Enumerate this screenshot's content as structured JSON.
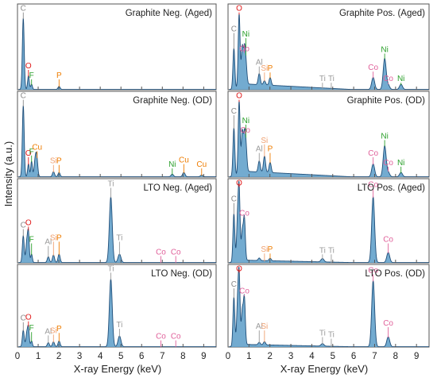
{
  "figure": {
    "xlabel": "X-ray Energy (keV)",
    "ylabel": "Intensity (a.u.)",
    "x_ticks": [
      "0",
      "1",
      "2",
      "3",
      "4",
      "5",
      "6",
      "7",
      "8",
      "9"
    ]
  },
  "element_colors": {
    "C": "#8a8a8a",
    "O": "#e01818",
    "F": "#2ca02c",
    "P": "#ee7c00",
    "Cu": "#ee7c00",
    "Si": "#f0a070",
    "Al": "#9a9a9a",
    "Ti": "#9a9a9a",
    "Ni": "#2ca02c",
    "Co": "#e0609a"
  },
  "style": {
    "fill": "#5b9cc8",
    "line": "#1f4e79"
  },
  "chart_data": [
    {
      "type": "area",
      "title": "Graphite Neg. (Aged)",
      "xlim": [
        0,
        9.6
      ],
      "peaks": [
        {
          "x": 0.28,
          "h": 0.83,
          "w": 0.045
        },
        {
          "x": 0.53,
          "h": 0.16,
          "w": 0.04
        },
        {
          "x": 0.68,
          "h": 0.06,
          "w": 0.04
        },
        {
          "x": 2.01,
          "h": 0.035,
          "w": 0.05
        }
      ],
      "labels": [
        {
          "el": "C",
          "x": 0.28,
          "y": 0.92
        },
        {
          "el": "O",
          "x": 0.53,
          "y": 0.25
        },
        {
          "el": "F",
          "x": 0.68,
          "y": 0.14
        },
        {
          "el": "P",
          "x": 2.01,
          "y": 0.14
        }
      ]
    },
    {
      "type": "area",
      "title": "Graphite Pos. (Aged)",
      "xlim": [
        0,
        9.6
      ],
      "peaks": [
        {
          "x": 0.28,
          "h": 0.48,
          "w": 0.045
        },
        {
          "x": 0.53,
          "h": 0.84,
          "w": 0.045
        },
        {
          "x": 0.68,
          "h": 0.42,
          "w": 0.045
        },
        {
          "x": 0.78,
          "h": 0.34,
          "w": 0.045
        },
        {
          "x": 0.85,
          "h": 0.24,
          "w": 0.05
        },
        {
          "x": 1.49,
          "h": 0.13,
          "w": 0.05
        },
        {
          "x": 1.74,
          "h": 0.05,
          "w": 0.05
        },
        {
          "x": 2.01,
          "h": 0.09,
          "w": 0.05
        },
        {
          "x": 6.93,
          "h": 0.14,
          "w": 0.07
        },
        {
          "x": 7.48,
          "h": 0.36,
          "w": 0.07
        },
        {
          "x": 7.65,
          "h": 0.05,
          "w": 0.07
        },
        {
          "x": 8.26,
          "h": 0.06,
          "w": 0.07
        }
      ],
      "background": 0.07,
      "labels": [
        {
          "el": "C",
          "x": 0.28,
          "y": 0.68
        },
        {
          "el": "O",
          "x": 0.53,
          "y": 0.92
        },
        {
          "el": "Ni",
          "x": 0.85,
          "y": 0.62
        },
        {
          "el": "Co",
          "x": 0.78,
          "y": 0.45
        },
        {
          "el": "Al",
          "x": 1.49,
          "y": 0.29
        },
        {
          "el": "Si",
          "x": 1.74,
          "y": 0.22
        },
        {
          "el": "P",
          "x": 2.01,
          "y": 0.22
        },
        {
          "el": "Ti",
          "x": 4.51,
          "y": 0.1
        },
        {
          "el": "Ti",
          "x": 4.93,
          "y": 0.1
        },
        {
          "el": "Co",
          "x": 6.93,
          "y": 0.23
        },
        {
          "el": "Ni",
          "x": 7.48,
          "y": 0.44
        },
        {
          "el": "Co",
          "x": 7.65,
          "y": 0.1
        },
        {
          "el": "Ni",
          "x": 8.26,
          "y": 0.1
        }
      ]
    },
    {
      "type": "area",
      "title": "Graphite Neg. (OD)",
      "xlim": [
        0,
        9.6
      ],
      "peaks": [
        {
          "x": 0.28,
          "h": 0.83,
          "w": 0.045
        },
        {
          "x": 0.53,
          "h": 0.15,
          "w": 0.04
        },
        {
          "x": 0.68,
          "h": 0.18,
          "w": 0.04
        },
        {
          "x": 0.85,
          "h": 0.17,
          "w": 0.05
        },
        {
          "x": 0.93,
          "h": 0.22,
          "w": 0.05
        },
        {
          "x": 1.74,
          "h": 0.06,
          "w": 0.05
        },
        {
          "x": 2.01,
          "h": 0.05,
          "w": 0.05
        },
        {
          "x": 7.48,
          "h": 0.03,
          "w": 0.06
        },
        {
          "x": 8.04,
          "h": 0.05,
          "w": 0.06
        },
        {
          "x": 8.9,
          "h": 0.02,
          "w": 0.06
        }
      ],
      "labels": [
        {
          "el": "C",
          "x": 0.28,
          "y": 0.92
        },
        {
          "el": "O",
          "x": 0.53,
          "y": 0.25
        },
        {
          "el": "F",
          "x": 0.68,
          "y": 0.27
        },
        {
          "el": "Cu",
          "x": 0.95,
          "y": 0.32
        },
        {
          "el": "Si",
          "x": 1.74,
          "y": 0.16
        },
        {
          "el": "P",
          "x": 2.01,
          "y": 0.16
        },
        {
          "el": "Ni",
          "x": 7.48,
          "y": 0.12
        },
        {
          "el": "Cu",
          "x": 8.04,
          "y": 0.17
        },
        {
          "el": "Cu",
          "x": 8.9,
          "y": 0.12
        }
      ]
    },
    {
      "type": "area",
      "title": "Graphite Pos. (OD)",
      "xlim": [
        0,
        9.6
      ],
      "peaks": [
        {
          "x": 0.28,
          "h": 0.57,
          "w": 0.045
        },
        {
          "x": 0.53,
          "h": 0.84,
          "w": 0.045
        },
        {
          "x": 0.68,
          "h": 0.45,
          "w": 0.045
        },
        {
          "x": 0.78,
          "h": 0.34,
          "w": 0.045
        },
        {
          "x": 0.85,
          "h": 0.3,
          "w": 0.05
        },
        {
          "x": 1.49,
          "h": 0.13,
          "w": 0.05
        },
        {
          "x": 1.74,
          "h": 0.19,
          "w": 0.05
        },
        {
          "x": 2.01,
          "h": 0.12,
          "w": 0.05
        },
        {
          "x": 6.93,
          "h": 0.15,
          "w": 0.07
        },
        {
          "x": 7.48,
          "h": 0.36,
          "w": 0.07
        },
        {
          "x": 7.65,
          "h": 0.05,
          "w": 0.07
        },
        {
          "x": 8.26,
          "h": 0.05,
          "w": 0.07
        }
      ],
      "background": 0.07,
      "labels": [
        {
          "el": "C",
          "x": 0.28,
          "y": 0.74
        },
        {
          "el": "O",
          "x": 0.53,
          "y": 0.92
        },
        {
          "el": "Ni",
          "x": 0.85,
          "y": 0.63
        },
        {
          "el": "Co",
          "x": 0.82,
          "y": 0.52
        },
        {
          "el": "Al",
          "x": 1.49,
          "y": 0.3
        },
        {
          "el": "Si",
          "x": 1.74,
          "y": 0.4
        },
        {
          "el": "P",
          "x": 2.01,
          "y": 0.3
        },
        {
          "el": "Co",
          "x": 6.93,
          "y": 0.25
        },
        {
          "el": "Ni",
          "x": 7.48,
          "y": 0.45
        },
        {
          "el": "Co",
          "x": 7.65,
          "y": 0.14
        },
        {
          "el": "Ni",
          "x": 8.26,
          "y": 0.14
        }
      ]
    },
    {
      "type": "area",
      "title": "LTO Neg. (Aged)",
      "xlim": [
        0,
        9.6
      ],
      "peaks": [
        {
          "x": 0.28,
          "h": 0.32,
          "w": 0.045
        },
        {
          "x": 0.45,
          "h": 0.24,
          "w": 0.045
        },
        {
          "x": 0.53,
          "h": 0.34,
          "w": 0.04
        },
        {
          "x": 0.68,
          "h": 0.1,
          "w": 0.04
        },
        {
          "x": 1.49,
          "h": 0.07,
          "w": 0.05
        },
        {
          "x": 1.74,
          "h": 0.09,
          "w": 0.05
        },
        {
          "x": 2.01,
          "h": 0.1,
          "w": 0.05
        },
        {
          "x": 4.51,
          "h": 0.78,
          "w": 0.07
        },
        {
          "x": 4.93,
          "h": 0.1,
          "w": 0.07
        }
      ],
      "labels": [
        {
          "el": "C",
          "x": 0.28,
          "y": 0.42
        },
        {
          "el": "O",
          "x": 0.53,
          "y": 0.45
        },
        {
          "el": "F",
          "x": 0.68,
          "y": 0.25
        },
        {
          "el": "Al",
          "x": 1.49,
          "y": 0.22
        },
        {
          "el": "Si",
          "x": 1.74,
          "y": 0.27
        },
        {
          "el": "P",
          "x": 2.01,
          "y": 0.27
        },
        {
          "el": "Ti",
          "x": 4.51,
          "y": 0.91
        },
        {
          "el": "Ti",
          "x": 4.93,
          "y": 0.27
        },
        {
          "el": "Co",
          "x": 6.93,
          "y": 0.1
        },
        {
          "el": "Co",
          "x": 7.65,
          "y": 0.1
        }
      ]
    },
    {
      "type": "area",
      "title": "LTO Pos. (Aged)",
      "xlim": [
        0,
        9.6
      ],
      "peaks": [
        {
          "x": 0.28,
          "h": 0.58,
          "w": 0.045
        },
        {
          "x": 0.45,
          "h": 0.44,
          "w": 0.045
        },
        {
          "x": 0.53,
          "h": 0.84,
          "w": 0.045
        },
        {
          "x": 0.68,
          "h": 0.34,
          "w": 0.045
        },
        {
          "x": 0.78,
          "h": 0.5,
          "w": 0.045
        },
        {
          "x": 1.49,
          "h": 0.03,
          "w": 0.05
        },
        {
          "x": 2.01,
          "h": 0.03,
          "w": 0.05
        },
        {
          "x": 4.51,
          "h": 0.04,
          "w": 0.07
        },
        {
          "x": 6.93,
          "h": 0.78,
          "w": 0.07
        },
        {
          "x": 7.65,
          "h": 0.12,
          "w": 0.07
        }
      ],
      "background": 0.03,
      "labels": [
        {
          "el": "C",
          "x": 0.28,
          "y": 0.73
        },
        {
          "el": "O",
          "x": 0.53,
          "y": 0.92
        },
        {
          "el": "Co",
          "x": 0.78,
          "y": 0.56
        },
        {
          "el": "Si",
          "x": 1.74,
          "y": 0.13
        },
        {
          "el": "P",
          "x": 2.01,
          "y": 0.13
        },
        {
          "el": "Ti",
          "x": 4.51,
          "y": 0.12
        },
        {
          "el": "Ti",
          "x": 4.93,
          "y": 0.12
        },
        {
          "el": "Co",
          "x": 6.93,
          "y": 0.9
        },
        {
          "el": "Co",
          "x": 7.65,
          "y": 0.25
        }
      ]
    },
    {
      "type": "area",
      "title": "LTO Neg. (OD)",
      "xlim": [
        0,
        9.6
      ],
      "peaks": [
        {
          "x": 0.28,
          "h": 0.2,
          "w": 0.045
        },
        {
          "x": 0.45,
          "h": 0.16,
          "w": 0.045
        },
        {
          "x": 0.53,
          "h": 0.22,
          "w": 0.04
        },
        {
          "x": 0.68,
          "h": 0.07,
          "w": 0.04
        },
        {
          "x": 1.49,
          "h": 0.05,
          "w": 0.05
        },
        {
          "x": 1.74,
          "h": 0.06,
          "w": 0.05
        },
        {
          "x": 2.01,
          "h": 0.07,
          "w": 0.05
        },
        {
          "x": 4.51,
          "h": 0.82,
          "w": 0.07
        },
        {
          "x": 4.93,
          "h": 0.13,
          "w": 0.07
        }
      ],
      "labels": [
        {
          "el": "C",
          "x": 0.28,
          "y": 0.32
        },
        {
          "el": "O",
          "x": 0.53,
          "y": 0.33
        },
        {
          "el": "F",
          "x": 0.68,
          "y": 0.2
        },
        {
          "el": "Al",
          "x": 1.49,
          "y": 0.16
        },
        {
          "el": "Si",
          "x": 1.74,
          "y": 0.17
        },
        {
          "el": "P",
          "x": 2.01,
          "y": 0.19
        },
        {
          "el": "Ti",
          "x": 4.51,
          "y": 0.92
        },
        {
          "el": "Ti",
          "x": 4.93,
          "y": 0.24
        },
        {
          "el": "Co",
          "x": 6.93,
          "y": 0.1
        },
        {
          "el": "Co",
          "x": 7.65,
          "y": 0.1
        }
      ]
    },
    {
      "type": "area",
      "title": "LTO Pos. (OD)",
      "xlim": [
        0,
        9.6
      ],
      "peaks": [
        {
          "x": 0.28,
          "h": 0.6,
          "w": 0.045
        },
        {
          "x": 0.45,
          "h": 0.44,
          "w": 0.045
        },
        {
          "x": 0.53,
          "h": 0.84,
          "w": 0.045
        },
        {
          "x": 0.68,
          "h": 0.4,
          "w": 0.045
        },
        {
          "x": 0.78,
          "h": 0.56,
          "w": 0.045
        },
        {
          "x": 1.49,
          "h": 0.03,
          "w": 0.05
        },
        {
          "x": 1.74,
          "h": 0.04,
          "w": 0.05
        },
        {
          "x": 4.51,
          "h": 0.03,
          "w": 0.07
        },
        {
          "x": 6.93,
          "h": 0.8,
          "w": 0.07
        },
        {
          "x": 7.65,
          "h": 0.12,
          "w": 0.07
        }
      ],
      "background": 0.03,
      "labels": [
        {
          "el": "C",
          "x": 0.28,
          "y": 0.73
        },
        {
          "el": "O",
          "x": 0.53,
          "y": 0.92
        },
        {
          "el": "Co",
          "x": 0.78,
          "y": 0.65
        },
        {
          "el": "Al",
          "x": 1.49,
          "y": 0.22
        },
        {
          "el": "Si",
          "x": 1.74,
          "y": 0.22
        },
        {
          "el": "Ti",
          "x": 4.51,
          "y": 0.14
        },
        {
          "el": "Ti",
          "x": 4.93,
          "y": 0.12
        },
        {
          "el": "Co",
          "x": 6.93,
          "y": 0.9
        },
        {
          "el": "Co",
          "x": 7.65,
          "y": 0.26
        }
      ]
    }
  ]
}
